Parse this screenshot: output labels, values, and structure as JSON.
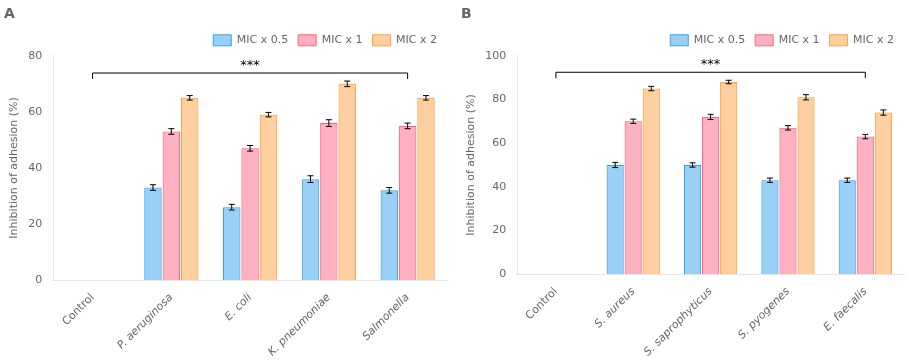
{
  "chart_data": [
    {
      "type": "bar",
      "title": "A",
      "categories": [
        "Control",
        "P. aeruginosa",
        "E. coli",
        "K. pneumoniae",
        "Salmonella"
      ],
      "series": [
        {
          "name": "MIC x 0.5",
          "values": [
            null,
            33,
            26,
            36,
            32
          ],
          "errors": [
            null,
            1.0,
            1.0,
            1.2,
            1.0
          ]
        },
        {
          "name": "MIC x 1",
          "values": [
            null,
            53,
            47,
            56,
            55
          ],
          "errors": [
            null,
            1.0,
            1.0,
            1.2,
            1.0
          ]
        },
        {
          "name": "MIC x 2",
          "values": [
            null,
            65,
            59,
            70,
            65
          ],
          "errors": [
            null,
            0.8,
            0.8,
            1.0,
            0.8
          ]
        }
      ],
      "y_label": "Inhibition of adhesion (%)",
      "ylim": [
        0,
        80
      ],
      "yticks": [
        0,
        20,
        40,
        60,
        80
      ],
      "annotation": "***",
      "grid": false,
      "legend": "upper right"
    },
    {
      "type": "bar",
      "title": "B",
      "categories": [
        "Control",
        "S. aureus",
        "S. saprophyticus",
        "S. pyogenes",
        "E. faecalis"
      ],
      "series": [
        {
          "name": "MIC x 0.5",
          "values": [
            null,
            50,
            50,
            43,
            43
          ],
          "errors": [
            null,
            1.2,
            1.0,
            1.0,
            1.0
          ]
        },
        {
          "name": "MIC x 1",
          "values": [
            null,
            70,
            72,
            67,
            63
          ],
          "errors": [
            null,
            1.0,
            1.2,
            1.0,
            1.0
          ]
        },
        {
          "name": "MIC x 2",
          "values": [
            null,
            85,
            88,
            81,
            74
          ],
          "errors": [
            null,
            1.0,
            0.8,
            1.2,
            1.2
          ]
        }
      ],
      "y_label": "Inhibition of adhesion (%)",
      "ylim": [
        0,
        100
      ],
      "yticks": [
        0,
        20,
        40,
        60,
        80,
        100
      ],
      "annotation": "***",
      "grid": false,
      "legend": "upper right"
    }
  ]
}
